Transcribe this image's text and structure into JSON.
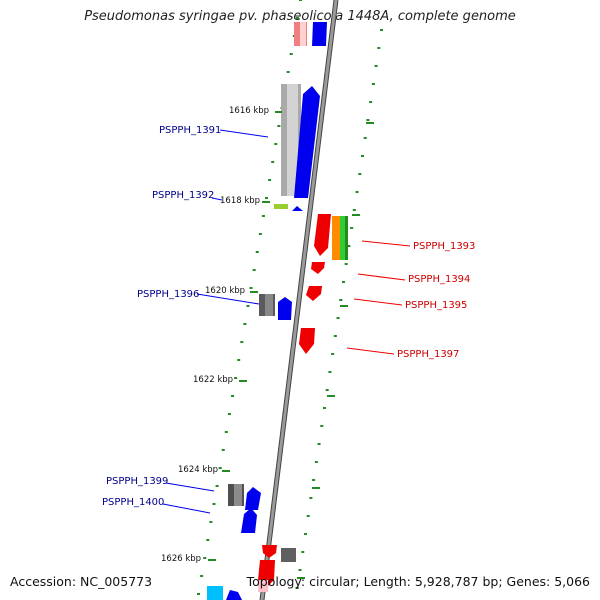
{
  "title": "Pseudomonas syringae pv. phaseolicola 1448A, complete genome",
  "footer": {
    "accession": "Accession: NC_005773",
    "summary": "Topology: circular; Length: 5,928,787 bp; Genes: 5,066"
  },
  "colors": {
    "backbone": "#7f7f7f",
    "forward_gene": "#0000ee",
    "reverse_gene": "#ee0000",
    "forward_label": "#00008b",
    "reverse_label": "#cc0000",
    "tick": "#228b22"
  },
  "scale_labels": [
    "1616 kbp",
    "1618 kbp",
    "1620 kbp",
    "1622 kbp",
    "1624 kbp",
    "1626 kbp"
  ],
  "gene_labels": {
    "left": [
      "PSPPH_1391",
      "PSPPH_1392",
      "PSPPH_1396",
      "PSPPH_1399",
      "PSPPH_1400"
    ],
    "right": [
      "PSPPH_1393",
      "PSPPH_1394",
      "PSPPH_1395",
      "PSPPH_1397"
    ]
  }
}
